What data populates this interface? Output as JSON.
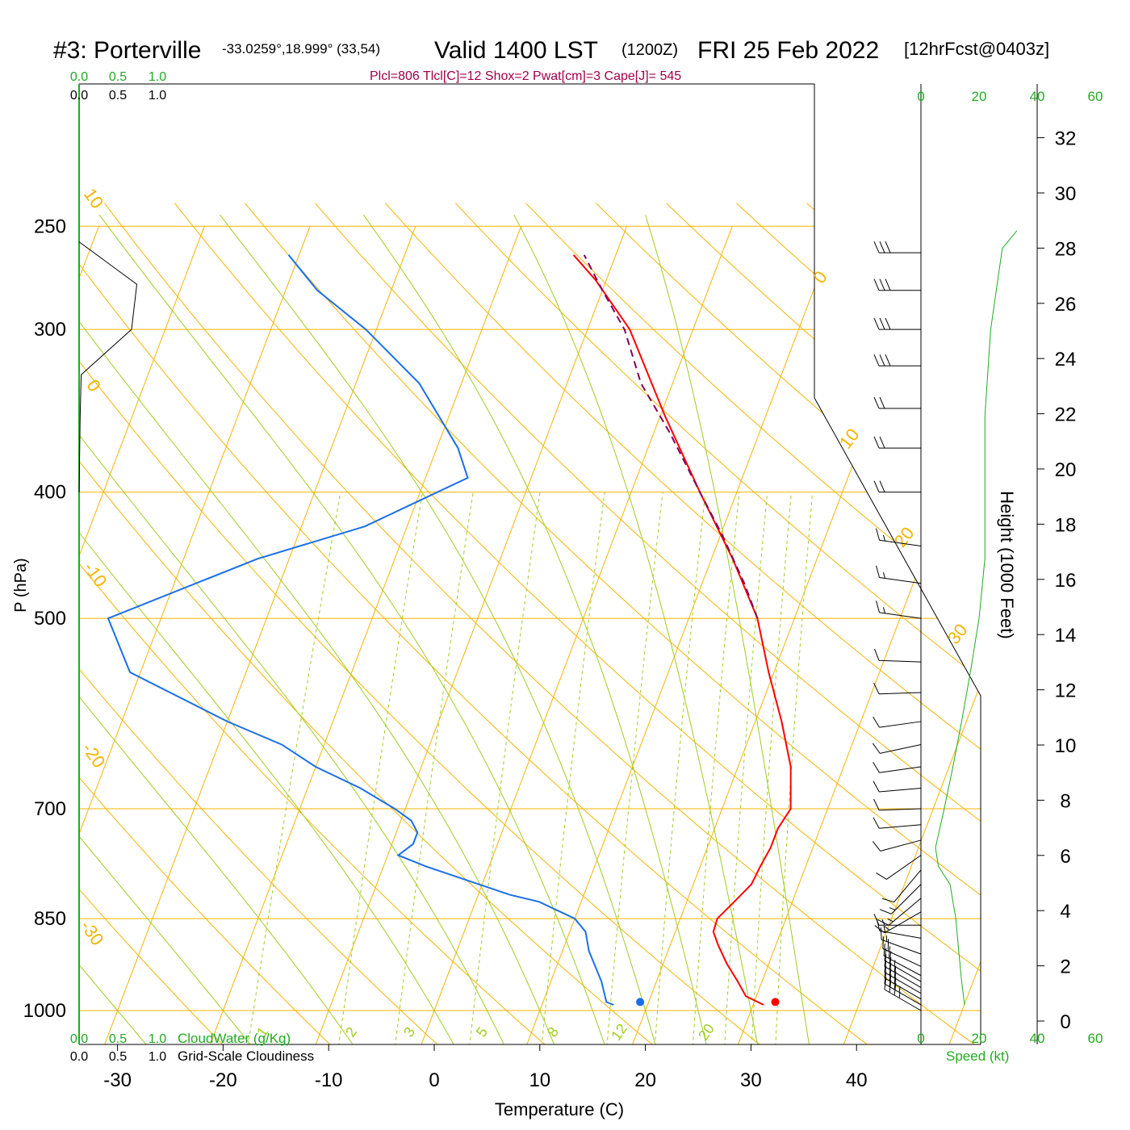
{
  "header": {
    "station": "#3: Porterville",
    "coords": "-33.0259°,18.999° (33,54)",
    "valid": "Valid 1400 LST",
    "zulu": "(1200Z)",
    "date": "FRI 25 Feb 2022",
    "forecast": "[12hrFcst@0403z]"
  },
  "indices": "Plcl=806 Tlcl[C]=12 Shox=2 Pwat[cm]=3 Cape[J]= 545",
  "colors": {
    "isobar": "#f5b400",
    "dry_adiabat": "#f5b400",
    "moist_adiabat": "#a0cc20",
    "mixing_ratio": "#a0cc20",
    "temperature": "#ff0000",
    "dewpoint": "#1a6fe8",
    "parcel": "#800060",
    "green_text": "#22aa22",
    "indices_text": "#a0004a"
  },
  "chart_data": {
    "type": "line",
    "xlabel": "Temperature (C)",
    "ylabel": "P (hPa)",
    "y2label": "Height (1000 Feet)",
    "x_ticks": [
      "-30",
      "-20",
      "-10",
      "0",
      "10",
      "20",
      "30",
      "40"
    ],
    "p_ticks": [
      "250",
      "300",
      "400",
      "500",
      "700",
      "850",
      "1000"
    ],
    "height_ticks": [
      "0",
      "2",
      "4",
      "6",
      "8",
      "10",
      "12",
      "14",
      "16",
      "18",
      "20",
      "22",
      "24",
      "26",
      "28",
      "30",
      "32"
    ],
    "isotherm_labels": [
      "10",
      "0",
      "-10",
      "-20",
      "-30",
      "0",
      "10",
      "20",
      "30"
    ],
    "mixing_ratio_labels": [
      "1",
      "2",
      "3",
      "5",
      "8",
      "12",
      "20"
    ],
    "cloud_scale_top": [
      "0.0",
      "0.5",
      "1.0"
    ],
    "cloud_scale_bottom": [
      "0.0",
      "0.5",
      "1.0"
    ],
    "cloudwater_label": "CloudWater (g/Kg)",
    "cloudiness_label": "Grid-Scale Cloudiness",
    "speed_ticks": [
      "0",
      "20",
      "40",
      "60"
    ],
    "speed_label": "Speed (kt)",
    "series": [
      {
        "key": "temperature",
        "points": [
          [
            31,
            990
          ],
          [
            29,
            975
          ],
          [
            27.7,
            950
          ],
          [
            26,
            920
          ],
          [
            24.5,
            890
          ],
          [
            23.6,
            870
          ],
          [
            23.5,
            850
          ],
          [
            24.5,
            825
          ],
          [
            25.5,
            800
          ],
          [
            25.7,
            775
          ],
          [
            26,
            750
          ],
          [
            26,
            725
          ],
          [
            26.5,
            700
          ],
          [
            25,
            650
          ],
          [
            22.5,
            600
          ],
          [
            19.5,
            550
          ],
          [
            16.5,
            500
          ],
          [
            12,
            450
          ],
          [
            6.5,
            400
          ],
          [
            0.5,
            350
          ],
          [
            -6,
            300
          ],
          [
            -11,
            275
          ],
          [
            -14,
            263
          ]
        ]
      },
      {
        "key": "dewpoint",
        "points": [
          [
            16.8,
            990
          ],
          [
            16,
            985
          ],
          [
            14.8,
            950
          ],
          [
            12.5,
            900
          ],
          [
            11.5,
            870
          ],
          [
            10,
            850
          ],
          [
            6,
            825
          ],
          [
            3,
            815
          ],
          [
            -6,
            775
          ],
          [
            -9,
            760
          ],
          [
            -8,
            745
          ],
          [
            -8,
            730
          ],
          [
            -9,
            715
          ],
          [
            -11,
            700
          ],
          [
            -15,
            675
          ],
          [
            -20,
            650
          ],
          [
            -24,
            625
          ],
          [
            -30,
            600
          ],
          [
            -41,
            550
          ],
          [
            -45,
            500
          ],
          [
            -33,
            450
          ],
          [
            -24,
            425
          ],
          [
            -16,
            390
          ],
          [
            -18,
            370
          ],
          [
            -24,
            330
          ],
          [
            -31,
            300
          ],
          [
            -37,
            280
          ],
          [
            -41,
            263
          ]
        ]
      },
      {
        "key": "parcel",
        "points": [
          [
            16.5,
            500
          ],
          [
            14,
            470
          ],
          [
            10,
            430
          ],
          [
            6.5,
            400
          ],
          [
            1.5,
            360
          ],
          [
            -3,
            330
          ],
          [
            -6.5,
            300
          ],
          [
            -10,
            280
          ],
          [
            -13,
            263
          ]
        ]
      }
    ],
    "cloud_profile": [
      [
        0.0,
        400
      ],
      [
        0.01,
        350
      ],
      [
        0.02,
        325
      ],
      [
        0.5,
        300
      ],
      [
        0.55,
        277
      ],
      [
        0.0,
        257
      ]
    ],
    "surface_points": {
      "temperature": 32.3,
      "dewpoint": 19.5,
      "pressure": 985
    },
    "wind_profile": [
      {
        "p": 1000,
        "dir": 300,
        "spd": 35
      },
      {
        "p": 990,
        "dir": 300,
        "spd": 35
      },
      {
        "p": 980,
        "dir": 300,
        "spd": 33
      },
      {
        "p": 970,
        "dir": 300,
        "spd": 30
      },
      {
        "p": 960,
        "dir": 300,
        "spd": 28
      },
      {
        "p": 950,
        "dir": 300,
        "spd": 25
      },
      {
        "p": 940,
        "dir": 298,
        "spd": 22
      },
      {
        "p": 925,
        "dir": 295,
        "spd": 20
      },
      {
        "p": 905,
        "dir": 290,
        "spd": 17
      },
      {
        "p": 880,
        "dir": 280,
        "spd": 15
      },
      {
        "p": 860,
        "dir": 270,
        "spd": 15
      },
      {
        "p": 840,
        "dir": 240,
        "spd": 15
      },
      {
        "p": 820,
        "dir": 230,
        "spd": 15
      },
      {
        "p": 800,
        "dir": 225,
        "spd": 15
      },
      {
        "p": 780,
        "dir": 220,
        "spd": 12
      },
      {
        "p": 760,
        "dir": 235,
        "spd": 12
      },
      {
        "p": 740,
        "dir": 255,
        "spd": 12
      },
      {
        "p": 720,
        "dir": 265,
        "spd": 12
      },
      {
        "p": 700,
        "dir": 268,
        "spd": 12
      },
      {
        "p": 675,
        "dir": 265,
        "spd": 12
      },
      {
        "p": 650,
        "dir": 262,
        "spd": 12
      },
      {
        "p": 625,
        "dir": 258,
        "spd": 12
      },
      {
        "p": 600,
        "dir": 262,
        "spd": 12
      },
      {
        "p": 570,
        "dir": 268,
        "spd": 12
      },
      {
        "p": 540,
        "dir": 272,
        "spd": 12
      },
      {
        "p": 500,
        "dir": 278,
        "spd": 15
      },
      {
        "p": 470,
        "dir": 278,
        "spd": 15
      },
      {
        "p": 440,
        "dir": 278,
        "spd": 15
      },
      {
        "p": 400,
        "dir": 270,
        "spd": 20
      },
      {
        "p": 370,
        "dir": 270,
        "spd": 20
      },
      {
        "p": 345,
        "dir": 270,
        "spd": 20
      },
      {
        "p": 320,
        "dir": 270,
        "spd": 30
      },
      {
        "p": 300,
        "dir": 270,
        "spd": 30
      },
      {
        "p": 280,
        "dir": 270,
        "spd": 30
      },
      {
        "p": 262,
        "dir": 270,
        "spd": 30
      }
    ],
    "speed_profile": [
      [
        15,
        990
      ],
      [
        14,
        950
      ],
      [
        13,
        900
      ],
      [
        12,
        850
      ],
      [
        10,
        800
      ],
      [
        6,
        775
      ],
      [
        5,
        750
      ],
      [
        8,
        700
      ],
      [
        11,
        650
      ],
      [
        14,
        600
      ],
      [
        17,
        550
      ],
      [
        20,
        500
      ],
      [
        22,
        450
      ],
      [
        22,
        400
      ],
      [
        22,
        350
      ],
      [
        24,
        300
      ],
      [
        28,
        260
      ],
      [
        33,
        252
      ]
    ]
  }
}
